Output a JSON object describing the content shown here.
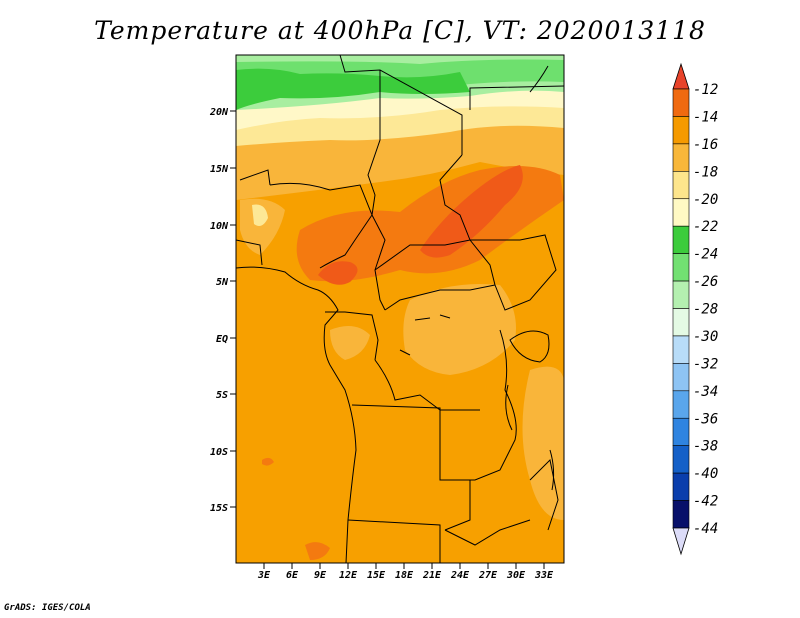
{
  "title": "Temperature at 400hPa [C], VT: 2020013118",
  "credit": "GrADS: IGES/COLA",
  "lat_labels": [
    "20N",
    "15N",
    "10N",
    "5N",
    "EQ",
    "5S",
    "10S",
    "15S"
  ],
  "lon_labels": [
    "3E",
    "6E",
    "9E",
    "12E",
    "15E",
    "18E",
    "21E",
    "24E",
    "27E",
    "30E",
    "33E"
  ],
  "colorbar": {
    "labels": [
      "-12",
      "-14",
      "-16",
      "-18",
      "-20",
      "-22",
      "-24",
      "-26",
      "-28",
      "-30",
      "-32",
      "-34",
      "-36",
      "-38",
      "-40",
      "-42",
      "-44"
    ],
    "colors": [
      "#e8432a",
      "#f06a10",
      "#f59a00",
      "#f8b73a",
      "#fde58c",
      "#fff9c4",
      "#3ccc3c",
      "#72e072",
      "#b4f0b0",
      "#e4fae4",
      "#b8dcf8",
      "#8ec4f4",
      "#5aa6ec",
      "#2f84e0",
      "#1460c8",
      "#0a3eac",
      "#08106a"
    ],
    "top_arrow_color": "#e8432a",
    "bottom_arrow_color": "#dcdcf8"
  },
  "map_colors": {
    "ocean_land_base": "#f7a000",
    "warm": "#f47a10",
    "warmest": "#f05a18",
    "light_orange": "#f9b53a",
    "pale_yellow": "#fde896",
    "cream": "#fff8c8",
    "green_dark": "#3ccc3c",
    "green_mid": "#6ee06e",
    "green_light": "#a8eea0"
  }
}
